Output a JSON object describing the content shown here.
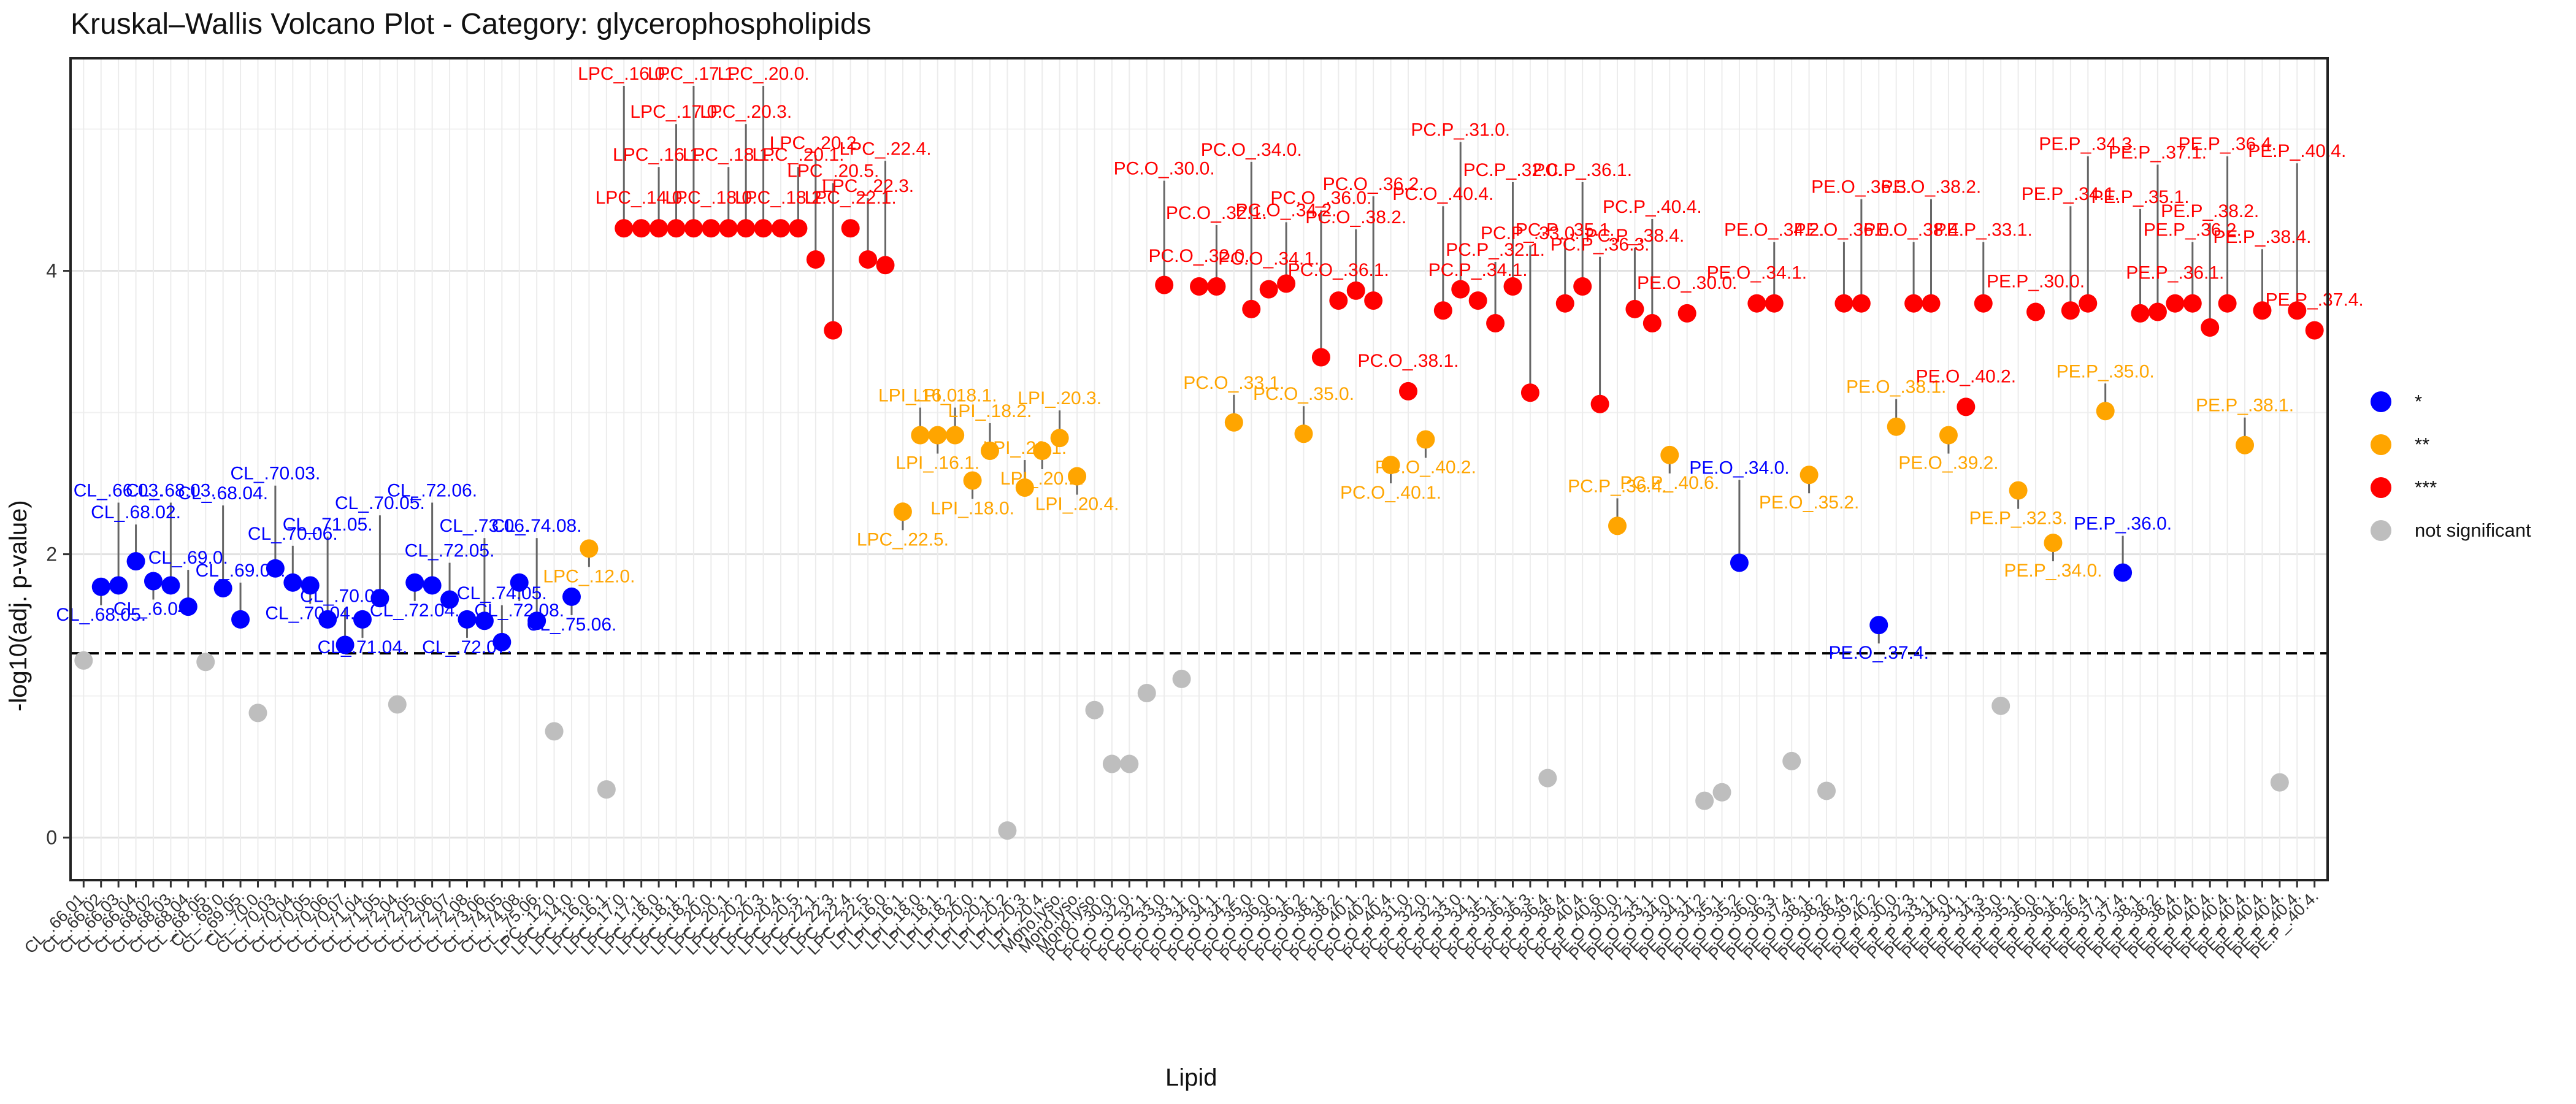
{
  "chart_data": {
    "type": "scatter",
    "title": "Kruskal–Wallis Volcano Plot - Category: glycerophospholipids",
    "xlabel": "Lipid",
    "ylabel": "-log10(adj. p-value)",
    "ylim": [
      -0.3,
      5.5
    ],
    "yticks": [
      0,
      2,
      4
    ],
    "threshold_y": 1.30103,
    "legend": [
      {
        "name": "*",
        "color": "#0000FF"
      },
      {
        "name": "**",
        "color": "#FFA500"
      },
      {
        "name": "***",
        "color": "#FF0000"
      },
      {
        "name": "not significant",
        "color": "#BEBEBE"
      }
    ],
    "points": [
      {
        "x": "CL_.66.01.",
        "y": 1.25,
        "group": "not significant"
      },
      {
        "x": "CL_.66.02.",
        "y": 1.77,
        "group": "*",
        "label": "CL_.68.05."
      },
      {
        "x": "CL_.66.03.",
        "y": 1.78,
        "group": "*",
        "label": "CL_.66.03."
      },
      {
        "x": "CL_.66.04.",
        "y": 1.95,
        "group": "*",
        "label": "CL_.68.02."
      },
      {
        "x": "CL_.68.02.",
        "y": 1.81,
        "group": "*",
        "label": "CL_.6.04."
      },
      {
        "x": "CL_.68.03.",
        "y": 1.78,
        "group": "*",
        "label": "CL_.68.03."
      },
      {
        "x": "CL_.68.04.",
        "y": 1.63,
        "group": "*",
        "label": "CL_.69.0."
      },
      {
        "x": "CL_.68.05.",
        "y": 1.24,
        "group": "not significant"
      },
      {
        "x": "CL_.69.0.",
        "y": 1.76,
        "group": "*",
        "label": "CL_.68.04."
      },
      {
        "x": "CL_.69.05.",
        "y": 1.54,
        "group": "*",
        "label": "CL_.69.05."
      },
      {
        "x": "CL_.70.0.",
        "y": 0.88,
        "group": "not significant"
      },
      {
        "x": "CL_.70.03.",
        "y": 1.9,
        "group": "*",
        "label": "CL_.70.03."
      },
      {
        "x": "CL_.70.04.",
        "y": 1.8,
        "group": "*",
        "label": "CL_.70.06."
      },
      {
        "x": "CL_.70.05.",
        "y": 1.78,
        "group": "*",
        "label": "CL_.70.04."
      },
      {
        "x": "CL_.70.06.",
        "y": 1.54,
        "group": "*",
        "label": "CL_.71.05."
      },
      {
        "x": "CL_.70.07.",
        "y": 1.36,
        "group": "*",
        "label": "CL_.70.07."
      },
      {
        "x": "CL_.71.04.",
        "y": 1.54,
        "group": "*",
        "label": "CL_.71.04."
      },
      {
        "x": "CL_.71.05.",
        "y": 1.69,
        "group": "*",
        "label": "CL_.70.05."
      },
      {
        "x": "CL_.72.04.",
        "y": 0.94,
        "group": "not significant"
      },
      {
        "x": "CL_.72.05.",
        "y": 1.8,
        "group": "*",
        "label": "CL_.72.04."
      },
      {
        "x": "CL_.72.06.",
        "y": 1.78,
        "group": "*",
        "label": "CL_.72.06."
      },
      {
        "x": "CL_.72.07.",
        "y": 1.68,
        "group": "*",
        "label": "CL_.72.05."
      },
      {
        "x": "CL_.72.08.",
        "y": 1.54,
        "group": "*",
        "label": "CL_.72.07."
      },
      {
        "x": "CL_.73.06.",
        "y": 1.53,
        "group": "*",
        "label": "CL_.73.06."
      },
      {
        "x": "CL_.74.05.",
        "y": 1.38,
        "group": "*",
        "label": "CL_.74.05."
      },
      {
        "x": "CL_.74.08.",
        "y": 1.8,
        "group": "*",
        "label": "CL_.72.08."
      },
      {
        "x": "CL_.75.06.",
        "y": 1.53,
        "group": "*",
        "label": "CL_.74.08."
      },
      {
        "x": "LPC_.12.0.",
        "y": 0.75,
        "group": "not significant"
      },
      {
        "x": "LPC_.14.0.",
        "y": 1.7,
        "group": "*",
        "label": "CL_.75.06."
      },
      {
        "x": "LPC_.16.0.",
        "y": 2.04,
        "group": "**",
        "label": "LPC_.12.0."
      },
      {
        "x": "LPC_.16.1.",
        "y": 0.34,
        "group": "not significant"
      },
      {
        "x": "LPC_.17.0.",
        "y": 4.3,
        "group": "***",
        "label": "LPC_.16.0."
      },
      {
        "x": "LPC_.17.1.",
        "y": 4.3,
        "group": "***",
        "label": "LPC_.14.0."
      },
      {
        "x": "LPC_.18.0.",
        "y": 4.3,
        "group": "***",
        "label": "LPC_.16.1."
      },
      {
        "x": "LPC_.18.1.",
        "y": 4.3,
        "group": "***",
        "label": "LPC_.17.0."
      },
      {
        "x": "LPC_.18.2.",
        "y": 4.3,
        "group": "***",
        "label": "LPC_.17.1."
      },
      {
        "x": "LPC_.20.0.",
        "y": 4.3,
        "group": "***",
        "label": "LPC_.18.0."
      },
      {
        "x": "LPC_.20.1.",
        "y": 4.3,
        "group": "***",
        "label": "LPC_.18.1."
      },
      {
        "x": "LPC_.20.2.",
        "y": 4.3,
        "group": "***",
        "label": "LPC_.20.3."
      },
      {
        "x": "LPC_.20.3.",
        "y": 4.3,
        "group": "***",
        "label": "LPC_.20.0."
      },
      {
        "x": "LPC_.20.4.",
        "y": 4.3,
        "group": "***",
        "label": "LPC_.18.2."
      },
      {
        "x": "LPC_.20.5.",
        "y": 4.3,
        "group": "***",
        "label": "LPC_.20.1."
      },
      {
        "x": "LPC_.22.1.",
        "y": 4.08,
        "group": "***",
        "label": "LPC_.20.2."
      },
      {
        "x": "LPC_.22.3.",
        "y": 3.58,
        "group": "***",
        "label": "LPC_.20.5."
      },
      {
        "x": "LPC_.22.4.",
        "y": 4.3,
        "group": "***",
        "label": "LPC_.22.1."
      },
      {
        "x": "LPC_.22.5.",
        "y": 4.08,
        "group": "***",
        "label": "LPC_.22.3."
      },
      {
        "x": "LPI_.16.0.",
        "y": 4.04,
        "group": "***",
        "label": "LPC_.22.4."
      },
      {
        "x": "LPI_.16.1.",
        "y": 2.3,
        "group": "**",
        "label": "LPC_.22.5."
      },
      {
        "x": "LPI_.18.0.",
        "y": 2.84,
        "group": "**",
        "label": "LPI_.16.0."
      },
      {
        "x": "LPI_.18.1.",
        "y": 2.84,
        "group": "**",
        "label": "LPI_.16.1."
      },
      {
        "x": "LPI_.18.2.",
        "y": 2.84,
        "group": "**",
        "label": "LPI_.18.1."
      },
      {
        "x": "LPI_.20.0.",
        "y": 2.52,
        "group": "**",
        "label": "LPI_.18.0."
      },
      {
        "x": "LPI_.20.1.",
        "y": 2.73,
        "group": "**",
        "label": "LPI_.18.2."
      },
      {
        "x": "LPI_.20.2.",
        "y": 0.05,
        "group": "not significant"
      },
      {
        "x": "LPI_.20.3.",
        "y": 2.47,
        "group": "**",
        "label": "LPI_.20.1."
      },
      {
        "x": "LPI_.20.4.",
        "y": 2.73,
        "group": "**",
        "label": "LPI_.20.2."
      },
      {
        "x": "Mono.lyso.",
        "y": 2.82,
        "group": "**",
        "label": "LPI_.20.3."
      },
      {
        "x": "Mono.lyso.",
        "y": 2.55,
        "group": "**",
        "label": "LPI_.20.4."
      },
      {
        "x": "Mono.lyso.",
        "y": 0.9,
        "group": "not significant"
      },
      {
        "x": "PC.O_.30.0.",
        "y": 0.52,
        "group": "not significant"
      },
      {
        "x": "PC.O_.32.0.",
        "y": 0.52,
        "group": "not significant"
      },
      {
        "x": "PC.O_.32.1.",
        "y": 1.02,
        "group": "not significant"
      },
      {
        "x": "PC.O_.33.0.",
        "y": 3.9,
        "group": "***",
        "label": "PC.O_.30.0."
      },
      {
        "x": "PC.O_.33.1.",
        "y": 1.12,
        "group": "not significant"
      },
      {
        "x": "PC.O_.34.0.",
        "y": 3.89,
        "group": "***",
        "label": "PC.O_.32.0."
      },
      {
        "x": "PC.O_.34.1.",
        "y": 3.89,
        "group": "***",
        "label": "PC.O_.32.1."
      },
      {
        "x": "PC.O_.34.2.",
        "y": 2.93,
        "group": "**",
        "label": "PC.O_.33.1."
      },
      {
        "x": "PC.O_.35.0.",
        "y": 3.73,
        "group": "***",
        "label": "PC.O_.34.0."
      },
      {
        "x": "PC.O_.36.0.",
        "y": 3.87,
        "group": "***",
        "label": "PC.O_.34.1."
      },
      {
        "x": "PC.O_.36.1.",
        "y": 3.91,
        "group": "***",
        "label": "PC.O_.34.2."
      },
      {
        "x": "PC.O_.36.2.",
        "y": 2.85,
        "group": "**",
        "label": "PC.O_.35.0."
      },
      {
        "x": "PC.O_.38.1.",
        "y": 3.39,
        "group": "***",
        "label": "PC.O_.36.0."
      },
      {
        "x": "PC.O_.38.2.",
        "y": 3.79,
        "group": "***",
        "label": "PC.O_.36.1."
      },
      {
        "x": "PC.O_.40.1.",
        "y": 3.86,
        "group": "***",
        "label": "PC.O_.38.2."
      },
      {
        "x": "PC.O_.40.2.",
        "y": 3.79,
        "group": "***",
        "label": "PC.O_.36.2."
      },
      {
        "x": "PC.O_.40.4.",
        "y": 2.63,
        "group": "**",
        "label": "PC.O_.40.1."
      },
      {
        "x": "PC.P_.31.0.",
        "y": 3.15,
        "group": "***",
        "label": "PC.O_.38.1."
      },
      {
        "x": "PC.P_.32.0.",
        "y": 2.81,
        "group": "**",
        "label": "PC.O_.40.2."
      },
      {
        "x": "PC.P_.32.1.",
        "y": 3.72,
        "group": "***",
        "label": "PC.O_.40.4."
      },
      {
        "x": "PC.P_.33.0.",
        "y": 3.87,
        "group": "***",
        "label": "PC.P_.31.0."
      },
      {
        "x": "PC.P_.34.1.",
        "y": 3.79,
        "group": "***",
        "label": "PC.P_.34.1."
      },
      {
        "x": "PC.P_.35.1.",
        "y": 3.63,
        "group": "***",
        "label": "PC.P_.32.1."
      },
      {
        "x": "PC.P_.36.1.",
        "y": 3.89,
        "group": "***",
        "label": "PC.P_.32.0."
      },
      {
        "x": "PC.P_.36.3.",
        "y": 3.14,
        "group": "***",
        "label": "PC.P_.33.0."
      },
      {
        "x": "PC.P_.36.4.",
        "y": 0.42,
        "group": "not significant"
      },
      {
        "x": "PC.P_.38.4.",
        "y": 3.77,
        "group": "***",
        "label": "PC.P_.35.1."
      },
      {
        "x": "PC.P_.40.4.",
        "y": 3.89,
        "group": "***",
        "label": "PC.P_.36.1."
      },
      {
        "x": "PC.P_.40.6.",
        "y": 3.06,
        "group": "***",
        "label": "PC.P_.36.3."
      },
      {
        "x": "PE.O_.30.0.",
        "y": 2.2,
        "group": "**",
        "label": "PC.P_.36.4."
      },
      {
        "x": "PE.O_.32.1.",
        "y": 3.73,
        "group": "***",
        "label": "PC.P_.38.4."
      },
      {
        "x": "PE.O_.33.1.",
        "y": 3.63,
        "group": "***",
        "label": "PC.P_.40.4."
      },
      {
        "x": "PE.O_.34.0.",
        "y": 2.7,
        "group": "**",
        "label": "PC.P_.40.6."
      },
      {
        "x": "PE.O_.34.1.",
        "y": 3.7,
        "group": "***",
        "label": "PE.O_.30.0."
      },
      {
        "x": "PE.O_.34.2.",
        "y": 0.26,
        "group": "not significant"
      },
      {
        "x": "PE.O_.35.1.",
        "y": 0.32,
        "group": "not significant"
      },
      {
        "x": "PE.O_.35.2.",
        "y": 1.94,
        "group": "*",
        "label": "PE.O_.34.0."
      },
      {
        "x": "PE.O_.36.0.",
        "y": 3.77,
        "group": "***",
        "label": "PE.O_.34.1."
      },
      {
        "x": "PE.O_.36.3.",
        "y": 3.77,
        "group": "***",
        "label": "PE.O_.34.2."
      },
      {
        "x": "PE.O_.37.4.",
        "y": 0.54,
        "group": "not significant"
      },
      {
        "x": "PE.O_.38.1.",
        "y": 2.56,
        "group": "**",
        "label": "PE.O_.35.2."
      },
      {
        "x": "PE.O_.38.2.",
        "y": 0.33,
        "group": "not significant"
      },
      {
        "x": "PE.O_.38.4.",
        "y": 3.77,
        "group": "***",
        "label": "PE.O_.36.0."
      },
      {
        "x": "PE.O_.39.2.",
        "y": 3.77,
        "group": "***",
        "label": "PE.O_.36.3."
      },
      {
        "x": "PE.O_.40.2.",
        "y": 1.5,
        "group": "*",
        "label": "PE.O_.37.4."
      },
      {
        "x": "PE.P_.30.0.",
        "y": 2.9,
        "group": "**",
        "label": "PE.O_.38.1."
      },
      {
        "x": "PE.P_.32.3.",
        "y": 3.77,
        "group": "***",
        "label": "PE.O_.38.4."
      },
      {
        "x": "PE.P_.33.1.",
        "y": 3.77,
        "group": "***",
        "label": "PE.O_.38.2."
      },
      {
        "x": "PE.P_.34.0.",
        "y": 2.84,
        "group": "**",
        "label": "PE.O_.39.2."
      },
      {
        "x": "PE.P_.34.1.",
        "y": 3.04,
        "group": "***",
        "label": "PE.O_.40.2."
      },
      {
        "x": "PE.P_.34.3.",
        "y": 3.77,
        "group": "***",
        "label": "PE.P_.33.1."
      },
      {
        "x": "PE.P_.35.0.",
        "y": 0.93,
        "group": "not significant"
      },
      {
        "x": "PE.P_.35.1.",
        "y": 2.45,
        "group": "**",
        "label": "PE.P_.32.3."
      },
      {
        "x": "PE.P_.36.0.",
        "y": 3.71,
        "group": "***",
        "label": "PE.P_.30.0."
      },
      {
        "x": "PE.P_.36.1.",
        "y": 2.08,
        "group": "**",
        "label": "PE.P_.34.0."
      },
      {
        "x": "PE.P_.36.2.",
        "y": 3.72,
        "group": "***",
        "label": "PE.P_.34.1."
      },
      {
        "x": "PE.P_.36.4.",
        "y": 3.77,
        "group": "***",
        "label": "PE.P_.34.3."
      },
      {
        "x": "PE.P_.37.1.",
        "y": 3.01,
        "group": "**",
        "label": "PE.P_.35.0."
      },
      {
        "x": "PE.P_.37.4.",
        "y": 1.87,
        "group": "*",
        "label": "PE.P_.36.0."
      },
      {
        "x": "PE.P_.38.1.",
        "y": 3.7,
        "group": "***",
        "label": "PE.P_.35.1."
      },
      {
        "x": "PE.P_.38.2.",
        "y": 3.71,
        "group": "***",
        "label": "PE.P_.37.1."
      },
      {
        "x": "PE.P_.38.4.",
        "y": 3.77,
        "group": "***",
        "label": "PE.P_.36.1."
      },
      {
        "x": "PE.P_.40.4.",
        "y": 3.77,
        "group": "***",
        "label": "PE.P_.36.2."
      },
      {
        "x": "PE.P_.40.4.",
        "y": 3.6,
        "group": "***",
        "label": "PE.P_.38.2."
      },
      {
        "x": "PE.P_.40.4.",
        "y": 3.77,
        "group": "***",
        "label": "PE.P_.36.4."
      },
      {
        "x": "PE.P_.40.4.",
        "y": 2.77,
        "group": "**",
        "label": "PE.P_.38.1."
      },
      {
        "x": "PE.P_.40.4.",
        "y": 3.72,
        "group": "***",
        "label": "PE.P_.38.4."
      },
      {
        "x": "PE.P_.40.4.",
        "y": 0.39,
        "group": "not significant"
      },
      {
        "x": "PE.P_.40.4.",
        "y": 3.72,
        "group": "***",
        "label": "PE.P_.40.4."
      },
      {
        "x": "PE.P_.40.4.",
        "y": 3.58,
        "group": "***",
        "label": "PE.P_.37.4."
      }
    ]
  }
}
